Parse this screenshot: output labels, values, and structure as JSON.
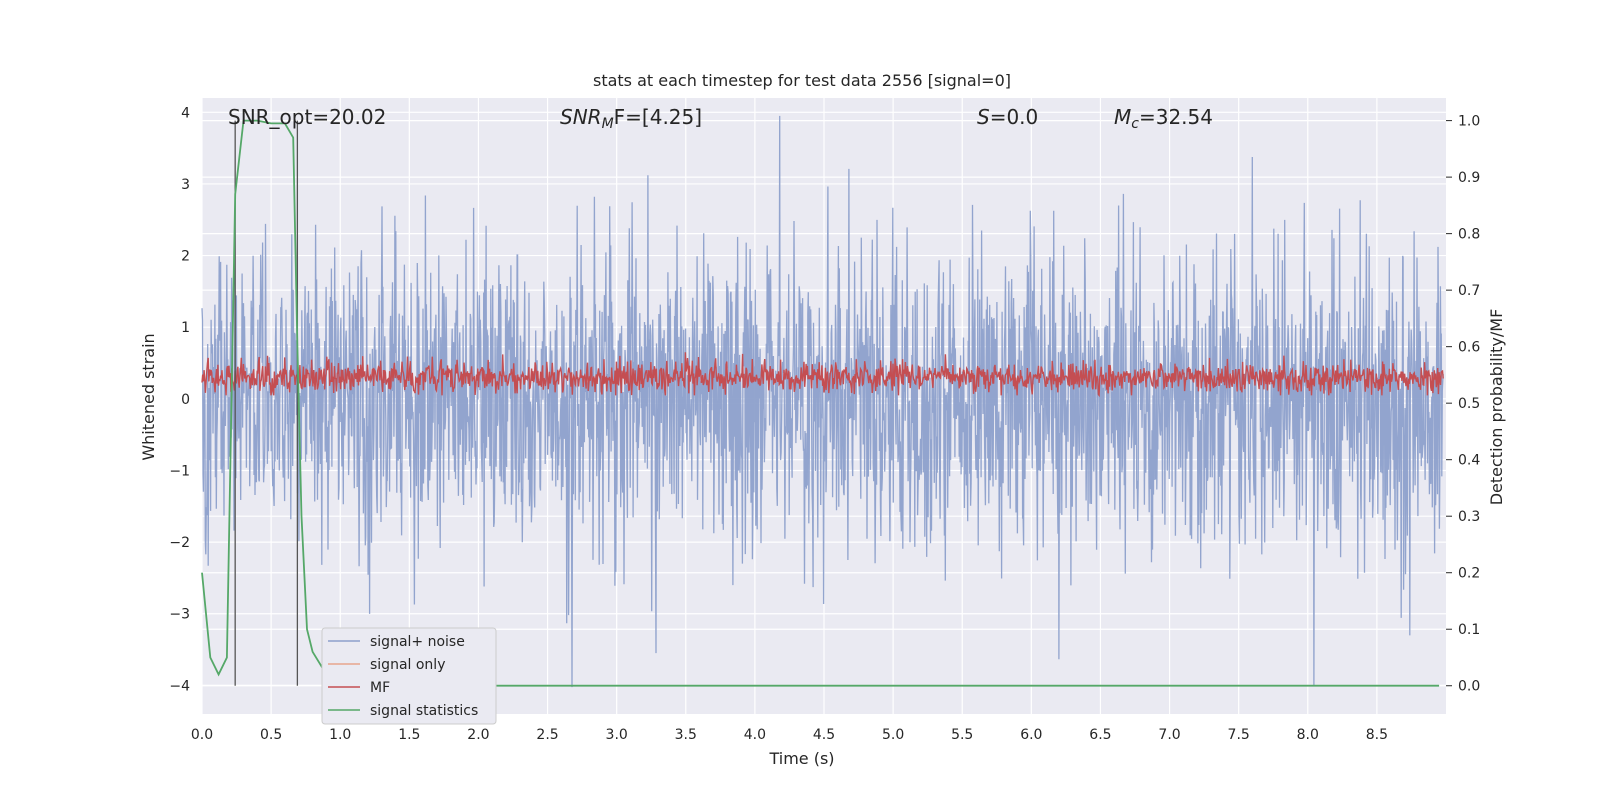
{
  "chart_data": {
    "type": "line",
    "title": "stats at each timestep for test data 2556 [signal=0]",
    "xlabel": "Time (s)",
    "ylabel_left": "Whitened strain",
    "ylabel_right": "Detection probability/MF",
    "xlim": [
      0.0,
      9.0
    ],
    "ylim_left": [
      -4.4,
      4.2
    ],
    "ylim_right": [
      -0.05,
      1.04
    ],
    "x_ticks": [
      "0.0",
      "0.5",
      "1.0",
      "1.5",
      "2.0",
      "2.5",
      "3.0",
      "3.5",
      "4.0",
      "4.5",
      "5.0",
      "5.5",
      "6.0",
      "6.5",
      "7.0",
      "7.5",
      "8.0",
      "8.5"
    ],
    "y_ticks_left": [
      "4",
      "3",
      "2",
      "1",
      "0",
      "−1",
      "−2",
      "−3",
      "−4"
    ],
    "y_ticks_right": [
      "1.0",
      "0.9",
      "0.8",
      "0.7",
      "0.6",
      "0.5",
      "0.4",
      "0.3",
      "0.2",
      "0.1",
      "0.0"
    ],
    "grid": true,
    "legend_position": "lower-left",
    "annotations": [
      {
        "label": "SNR_opt=20.02"
      },
      {
        "label": "SNR",
        "sub": "M",
        "rest": "F=[4.25]"
      },
      {
        "label": "S",
        "rest": "=0.0"
      },
      {
        "label": "M",
        "sub": "c",
        "rest": "=32.54"
      }
    ],
    "vertical_lines_x": [
      0.24,
      0.69
    ],
    "series": [
      {
        "name": "signal+ noise",
        "color": "#8da0cb",
        "axis": "left",
        "description_stats": {
          "center": 0.0,
          "typical_amplitude": 1.6,
          "peak_max": 3.95,
          "peak_min": -4.1
        }
      },
      {
        "name": "signal only",
        "color": "#e8a48c",
        "axis": "left",
        "values_constant": 0
      },
      {
        "name": "MF",
        "color": "#c44e52",
        "axis": "left",
        "description_stats": {
          "center": 0.3,
          "low": 0.05,
          "high": 0.65
        }
      },
      {
        "name": "signal statistics",
        "color": "#55a868",
        "axis": "right",
        "x": [
          0.0,
          0.06,
          0.12,
          0.18,
          0.24,
          0.3,
          0.4,
          0.5,
          0.6,
          0.66,
          0.69,
          0.72,
          0.76,
          0.8,
          0.9,
          1.0,
          1.5,
          2.0,
          3.0,
          4.0,
          5.0,
          6.0,
          7.0,
          8.0,
          8.95
        ],
        "values": [
          0.2,
          0.05,
          0.02,
          0.05,
          0.87,
          1.0,
          1.0,
          0.995,
          0.995,
          0.97,
          0.6,
          0.3,
          0.1,
          0.06,
          0.02,
          0.0,
          0.0,
          0.0,
          0.0,
          0.0,
          0.0,
          0.0,
          0.0,
          0.0,
          0.0
        ]
      }
    ]
  },
  "colors": {
    "plot_background": "#eaeaf2",
    "grid": "#ffffff",
    "vline": "#555555",
    "legend_bg": "#eaeaf2",
    "legend_border": "#cccccc"
  }
}
